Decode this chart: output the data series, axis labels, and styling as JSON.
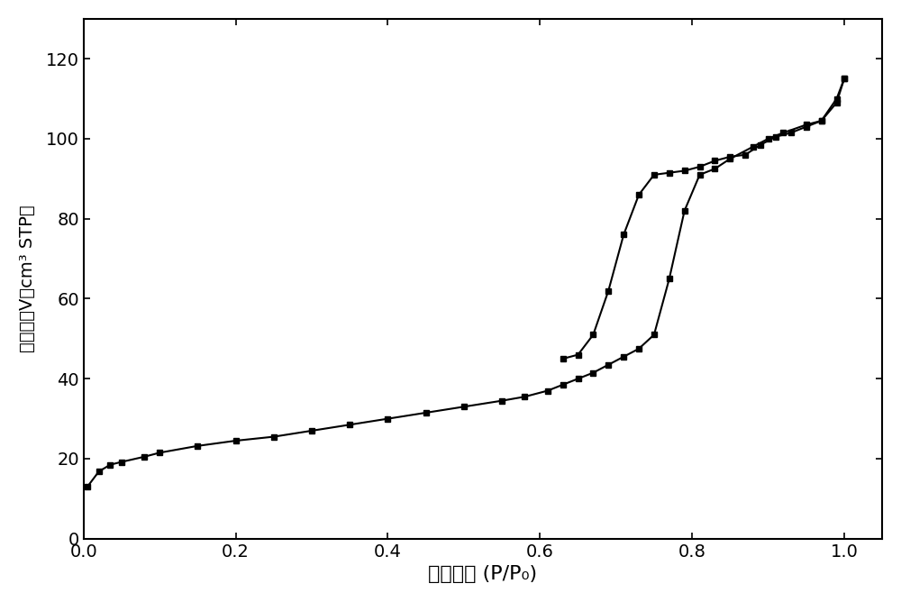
{
  "adsorption_x": [
    0.005,
    0.02,
    0.035,
    0.05,
    0.08,
    0.1,
    0.15,
    0.2,
    0.25,
    0.3,
    0.35,
    0.4,
    0.45,
    0.5,
    0.55,
    0.58,
    0.61,
    0.63,
    0.65,
    0.67,
    0.69,
    0.71,
    0.73,
    0.75,
    0.77,
    0.79,
    0.81,
    0.83,
    0.85,
    0.88,
    0.9,
    0.92,
    0.95,
    0.97,
    0.99,
    1.0
  ],
  "adsorption_y": [
    13.0,
    16.8,
    18.5,
    19.2,
    20.5,
    21.5,
    23.2,
    24.5,
    25.5,
    27.0,
    28.5,
    30.0,
    31.5,
    33.0,
    34.5,
    35.5,
    37.0,
    38.5,
    40.0,
    41.5,
    43.5,
    45.5,
    47.5,
    51.0,
    65.0,
    82.0,
    91.0,
    92.5,
    95.0,
    98.0,
    100.0,
    101.5,
    103.5,
    104.5,
    109.0,
    115.0
  ],
  "desorption_x": [
    1.0,
    0.99,
    0.97,
    0.95,
    0.93,
    0.91,
    0.89,
    0.87,
    0.85,
    0.83,
    0.81,
    0.79,
    0.77,
    0.75,
    0.73,
    0.71,
    0.69,
    0.67,
    0.65,
    0.63
  ],
  "desorption_y": [
    115.0,
    110.0,
    104.5,
    103.0,
    101.5,
    100.5,
    98.5,
    96.0,
    95.5,
    94.5,
    93.0,
    92.0,
    91.5,
    91.0,
    86.0,
    76.0,
    62.0,
    51.0,
    46.0,
    45.0
  ],
  "line_color": "#000000",
  "marker": "s",
  "marker_size": 4,
  "line_width": 1.5,
  "xlabel": "相对压力 (P/P₀)",
  "ylabel": "吸附体积V（cm³ STP）",
  "xlim": [
    0.0,
    1.05
  ],
  "ylim": [
    0,
    130
  ],
  "yticks": [
    0,
    20,
    40,
    60,
    80,
    100,
    120
  ],
  "xticks": [
    0.0,
    0.2,
    0.4,
    0.6,
    0.8,
    1.0
  ],
  "background_color": "#ffffff",
  "xlabel_fontsize": 16,
  "ylabel_fontsize": 14,
  "tick_fontsize": 14
}
